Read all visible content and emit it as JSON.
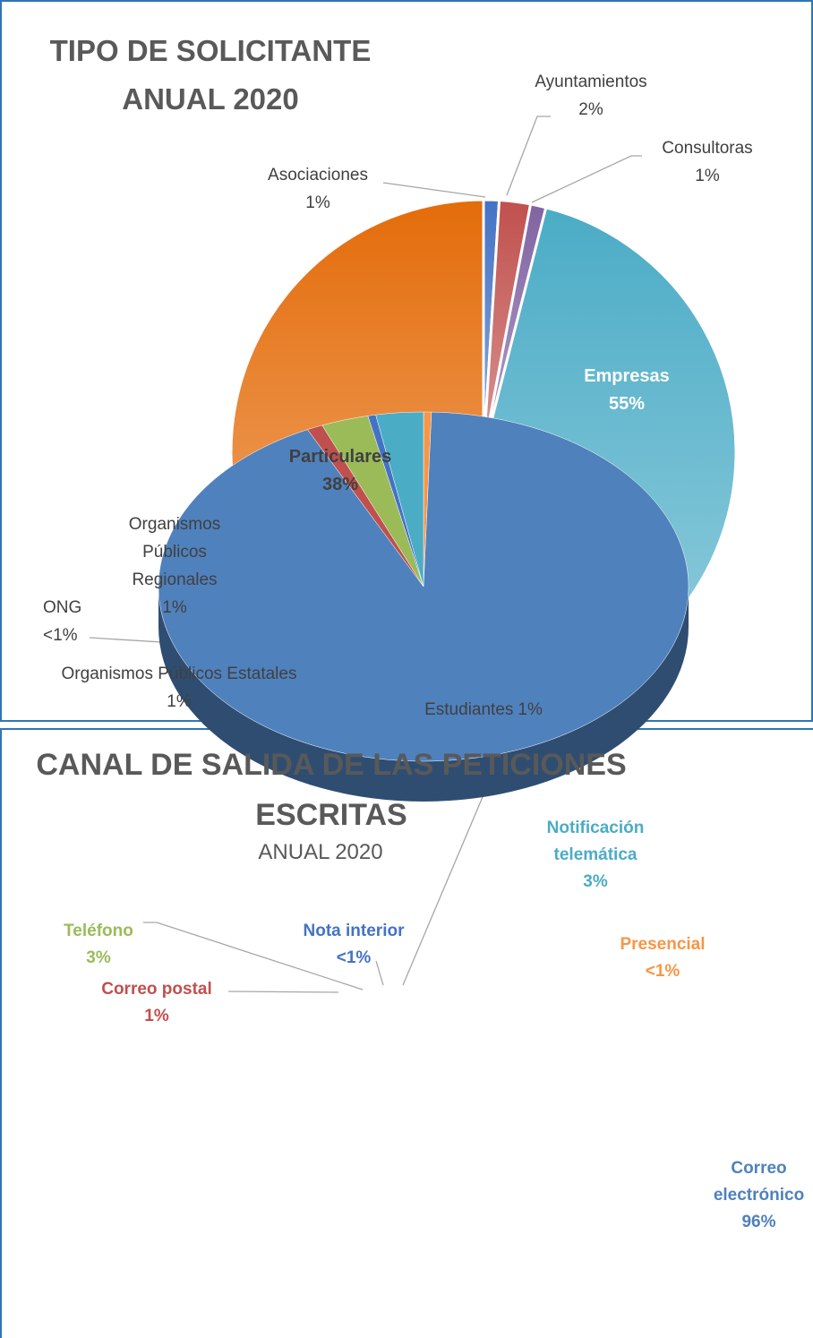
{
  "chart_data": [
    {
      "type": "pie",
      "title": "TIPO DE SOLICITANTE",
      "subtitle": "ANUAL 2020",
      "categories": [
        "Asociaciones",
        "Ayuntamientos",
        "Consultoras",
        "Empresas",
        "Estudiantes",
        "Organismos Públicos Estatales",
        "ONG",
        "Organismos Públicos Regionales",
        "Particulares"
      ],
      "values": [
        1,
        2,
        1,
        55,
        1,
        1,
        0.5,
        1,
        38
      ],
      "value_labels": [
        "1%",
        "2%",
        "1%",
        "55%",
        "1%",
        "1%",
        "<1%",
        "1%",
        "38%"
      ],
      "colors": [
        "#4472c4",
        "#c0504d",
        "#8064a2",
        "#4bacc6",
        "#f9b98a",
        "#3f6fb5",
        "#e8e8e8",
        "#9bbb59",
        "#e46c0a"
      ]
    },
    {
      "type": "pie3d",
      "title": "CANAL DE SALIDA DE LAS PETICIONES ESCRITAS",
      "subtitle": "ANUAL 2020",
      "categories": [
        "Presencial",
        "Correo electrónico",
        "Correo postal",
        "Teléfono",
        "Nota interior",
        "Notificación telemática"
      ],
      "values": [
        0.5,
        96,
        1,
        3,
        0.5,
        3
      ],
      "value_labels": [
        "<1%",
        "96%",
        "1%",
        "3%",
        "<1%",
        "3%"
      ],
      "colors": [
        "#f79646",
        "#4f81bd",
        "#c0504d",
        "#9bbb59",
        "#4472c4",
        "#4bacc6"
      ]
    }
  ]
}
